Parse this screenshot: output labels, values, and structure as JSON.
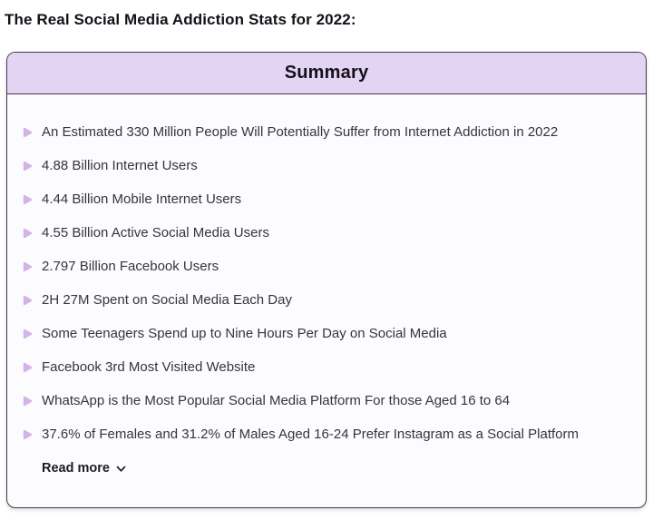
{
  "page": {
    "title": "The Real Social Media Addiction Stats for 2022:"
  },
  "summary_card": {
    "header": "Summary",
    "items": [
      "An Estimated 330 Million People Will Potentially Suffer from Internet Addiction in 2022",
      "4.88 Billion Internet Users",
      "4.44 Billion Mobile Internet Users",
      "4.55 Billion Active Social Media Users",
      "2.797 Billion Facebook Users",
      "2H 27M Spent on Social Media Each Day",
      "Some Teenagers Spend up to Nine Hours Per Day on Social Media",
      "Facebook 3rd Most Visited Website",
      "WhatsApp is the Most Popular Social Media Platform For those Aged 16 to 64",
      "37.6% of Females and 31.2% of Males Aged 16-24 Prefer Instagram as a Social Platform"
    ],
    "read_more_label": "Read more",
    "colors": {
      "page_bg": "#ffffff",
      "header_bg": "#e4d4f4",
      "border": "#413c49",
      "bullet": "#d4b3e9",
      "body_bg": "#fcfbfe",
      "text": "#37343c",
      "heading_text": "#151019"
    }
  }
}
